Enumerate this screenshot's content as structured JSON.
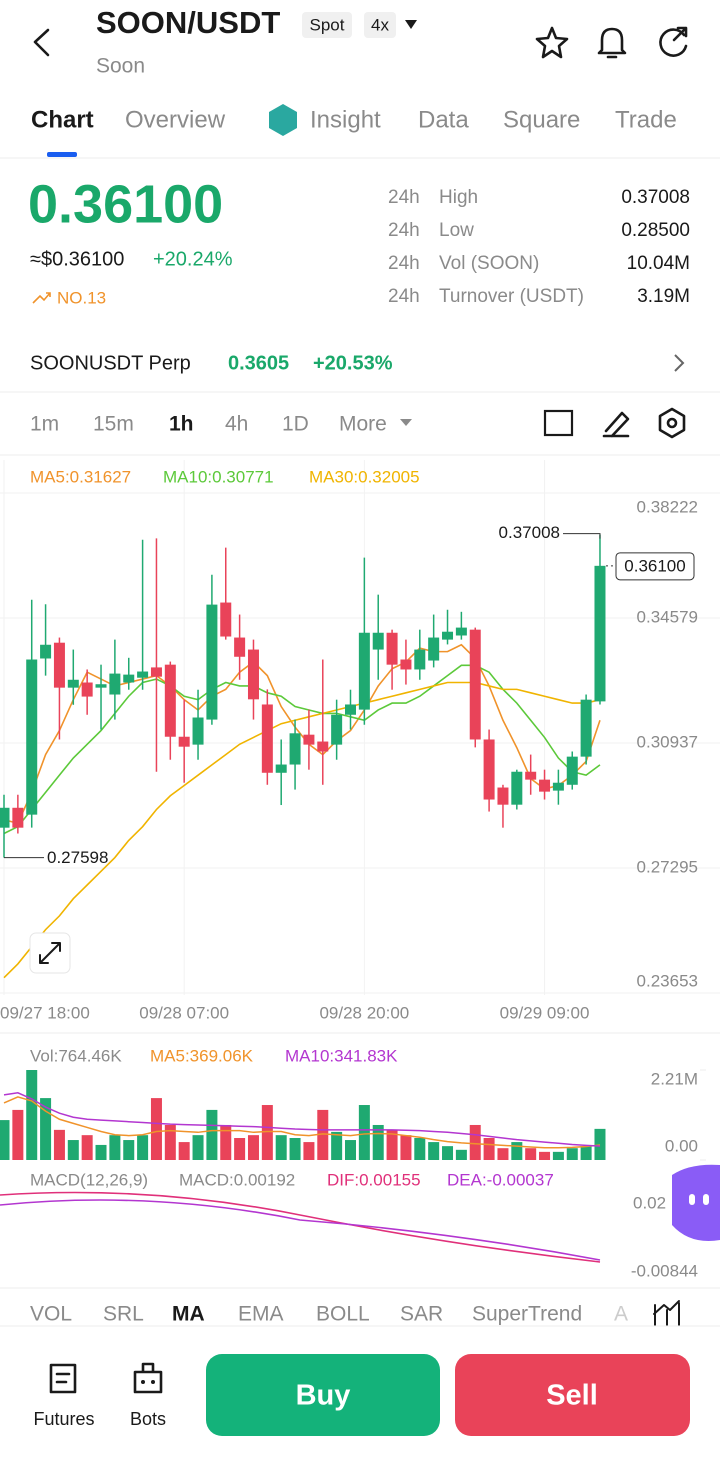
{
  "header": {
    "title": "SOON/USDT",
    "badges": [
      "Spot",
      "4x"
    ],
    "subtitle": "Soon"
  },
  "tabs": [
    "Chart",
    "Overview",
    "Insight",
    "Data",
    "Square",
    "Trade"
  ],
  "ticker": {
    "price": "0.36100",
    "usd": "≈$0.36100",
    "change": "+20.24%",
    "rank": "NO.13"
  },
  "stats": [
    [
      "24h",
      "High",
      "0.37008"
    ],
    [
      "24h",
      "Low",
      "0.28500"
    ],
    [
      "24h",
      "Vol (SOON)",
      "10.04M"
    ],
    [
      "24h",
      "Turnover (USDT)",
      "3.19M"
    ]
  ],
  "perp": {
    "name": "SOONUSDT Perp",
    "price": "0.3605",
    "change": "+20.53%"
  },
  "intervals": [
    "1m",
    "15m",
    "1h",
    "4h",
    "1D",
    "More"
  ],
  "chart_data": [
    {
      "type": "candlestick",
      "categories": [
        "09/27 18:00",
        null,
        null,
        null,
        null,
        null,
        null,
        null,
        null,
        null,
        null,
        null,
        null,
        "09/28 07:00",
        null,
        null,
        null,
        null,
        null,
        null,
        null,
        null,
        null,
        null,
        null,
        null,
        "09/28 20:00",
        null,
        null,
        null,
        null,
        null,
        null,
        null,
        null,
        null,
        null,
        null,
        null,
        "09/29 09:00",
        null,
        null,
        null,
        null
      ],
      "open": [
        0.2847,
        0.2905,
        0.2885,
        0.334,
        0.3386,
        0.3255,
        0.327,
        0.3255,
        0.3235,
        0.327,
        0.3284,
        0.3314,
        0.3322,
        0.3112,
        0.3089,
        0.3162,
        0.3503,
        0.3401,
        0.3366,
        0.3206,
        0.3007,
        0.3031,
        0.3118,
        0.3098,
        0.3089,
        0.3176,
        0.3191,
        0.3366,
        0.3415,
        0.3337,
        0.3308,
        0.3334,
        0.3395,
        0.3407,
        0.3424,
        0.3104,
        0.2964,
        0.2914,
        0.301,
        0.2987,
        0.2955,
        0.2972,
        0.3054,
        0.3215
      ],
      "high": [
        0.2943,
        0.2943,
        0.3511,
        0.3498,
        0.3401,
        0.3366,
        0.3308,
        0.3322,
        0.3395,
        0.3342,
        0.3686,
        0.369,
        0.3331,
        0.322,
        0.3249,
        0.3584,
        0.3663,
        0.3468,
        0.3395,
        0.325,
        0.3104,
        0.3162,
        0.3191,
        0.3337,
        0.322,
        0.3249,
        0.3634,
        0.3526,
        0.3424,
        0.3395,
        0.3424,
        0.3468,
        0.3482,
        0.3476,
        0.343,
        0.3133,
        0.2972,
        0.3016,
        0.306,
        0.3016,
        0.3016,
        0.3069,
        0.3235,
        0.37008
      ],
      "low": [
        0.27598,
        0.283,
        0.2847,
        0.329,
        0.3104,
        0.3205,
        0.3176,
        0.3133,
        0.3162,
        0.3249,
        0.3249,
        0.301,
        0.3045,
        0.2978,
        0.3045,
        0.3147,
        0.3395,
        0.3278,
        0.3162,
        0.2972,
        0.2913,
        0.2958,
        0.3016,
        0.2972,
        0.3045,
        0.3133,
        0.3147,
        0.3278,
        0.3249,
        0.3264,
        0.3278,
        0.3314,
        0.3381,
        0.3395,
        0.3081,
        0.2894,
        0.2847,
        0.29,
        0.2943,
        0.2929,
        0.2914,
        0.2958,
        0.3031,
        0.3206
      ],
      "close": [
        0.2905,
        0.2847,
        0.3337,
        0.338,
        0.3255,
        0.3278,
        0.3229,
        0.3265,
        0.3296,
        0.3293,
        0.3302,
        0.3287,
        0.3112,
        0.3083,
        0.3168,
        0.3497,
        0.3404,
        0.3345,
        0.3221,
        0.3007,
        0.3031,
        0.3122,
        0.3089,
        0.3069,
        0.3176,
        0.3206,
        0.3415,
        0.3415,
        0.3322,
        0.3308,
        0.3366,
        0.3401,
        0.3418,
        0.343,
        0.3104,
        0.2929,
        0.2914,
        0.301,
        0.2987,
        0.2952,
        0.2978,
        0.3054,
        0.322,
        0.361
      ],
      "series": [
        {
          "name": "MA5:0.31627",
          "color": "#f0932b",
          "values": [
            0.287,
            0.286,
            0.295,
            0.306,
            0.313,
            0.322,
            0.33,
            0.328,
            0.326,
            0.327,
            0.328,
            0.329,
            0.326,
            0.322,
            0.319,
            0.323,
            0.325,
            0.33,
            0.333,
            0.329,
            0.32,
            0.314,
            0.309,
            0.306,
            0.31,
            0.313,
            0.319,
            0.326,
            0.331,
            0.333,
            0.337,
            0.336,
            0.336,
            0.338,
            0.334,
            0.326,
            0.316,
            0.308,
            0.299,
            0.296,
            0.297,
            0.3,
            0.304,
            0.316
          ]
        },
        {
          "name": "MA10:0.30771",
          "color": "#5cc93a",
          "values": [
            0.283,
            0.285,
            0.29,
            0.295,
            0.3,
            0.305,
            0.309,
            0.313,
            0.318,
            0.323,
            0.327,
            0.328,
            0.326,
            0.323,
            0.322,
            0.325,
            0.327,
            0.326,
            0.326,
            0.324,
            0.323,
            0.32,
            0.319,
            0.318,
            0.318,
            0.317,
            0.316,
            0.319,
            0.321,
            0.321,
            0.323,
            0.326,
            0.329,
            0.332,
            0.332,
            0.33,
            0.325,
            0.321,
            0.316,
            0.311,
            0.305,
            0.301,
            0.3,
            0.303
          ]
        },
        {
          "name": "MA30:0.32005",
          "color": "#f0b400",
          "values": [
            0.241,
            0.245,
            0.25,
            0.255,
            0.259,
            0.264,
            0.268,
            0.272,
            0.276,
            0.281,
            0.285,
            0.29,
            0.294,
            0.297,
            0.3,
            0.303,
            0.306,
            0.309,
            0.311,
            0.313,
            0.315,
            0.316,
            0.317,
            0.318,
            0.319,
            0.32,
            0.321,
            0.322,
            0.323,
            0.324,
            0.325,
            0.326,
            0.327,
            0.327,
            0.327,
            0.326,
            0.325,
            0.325,
            0.324,
            0.323,
            0.322,
            0.321,
            0.321,
            0.322
          ]
        }
      ],
      "ylim": [
        0.23653,
        0.38222
      ],
      "yticks": [
        0.38222,
        0.34579,
        0.30937,
        0.27295,
        0.23653
      ],
      "markers": [
        0.37008,
        0.27598,
        {
          "value": 0.361,
          "label": "0.36100"
        }
      ],
      "up_color": "#1fa971",
      "down_color": "#e94359",
      "grid": true
    },
    {
      "type": "volume",
      "series": [
        {
          "name": "Vol:764.46K",
          "values": [
            980000,
            1230000,
            2210000,
            1520000,
            740000,
            490000,
            610000,
            370000,
            610000,
            490000,
            610000,
            1520000,
            860000,
            440000,
            610000,
            1230000,
            860000,
            540000,
            610000,
            1350000,
            610000,
            540000,
            440000,
            1230000,
            690000,
            490000,
            1350000,
            860000,
            740000,
            610000,
            540000,
            440000,
            340000,
            250000,
            860000,
            540000,
            290000,
            440000,
            290000,
            200000,
            200000,
            290000,
            340000,
            764460
          ]
        },
        {
          "name": "MA5:369.06K",
          "color": "#f0932b",
          "values": [
            1400000,
            1550000,
            1450000,
            1200000,
            1000000,
            900000,
            800000,
            700000,
            620000,
            600000,
            620000,
            700000,
            720000,
            700000,
            680000,
            720000,
            720000,
            720000,
            680000,
            700000,
            700000,
            620000,
            600000,
            640000,
            620000,
            600000,
            640000,
            650000,
            640000,
            600000,
            560000,
            500000,
            450000,
            420000,
            400000,
            380000,
            360000,
            340000,
            320000,
            300000,
            300000,
            310000,
            330000,
            369060
          ]
        },
        {
          "name": "MA10:341.83K",
          "color": "#b336d0",
          "values": [
            1600000,
            1650000,
            1500000,
            1300000,
            1150000,
            1050000,
            1000000,
            980000,
            960000,
            940000,
            920000,
            900000,
            880000,
            870000,
            860000,
            850000,
            840000,
            830000,
            820000,
            800000,
            780000,
            760000,
            750000,
            740000,
            740000,
            740000,
            740000,
            740000,
            740000,
            730000,
            720000,
            700000,
            680000,
            650000,
            620000,
            580000,
            540000,
            500000,
            470000,
            440000,
            410000,
            380000,
            360000,
            341830
          ]
        }
      ],
      "ylim": [
        0,
        2210000
      ],
      "yticks": [
        {
          "value": 0,
          "label": "0.00"
        },
        {
          "value": 2210000,
          "label": "2.21M"
        }
      ]
    }
  ],
  "macd": {
    "legend": [
      "MACD(12,26,9)",
      "MACD:0.00192",
      "DIF:0.00155",
      "DEA:-0.00037"
    ],
    "axis_labels": [
      "0.02",
      "-0.00844"
    ]
  },
  "indicators": [
    "VOL",
    "SRL",
    "MA",
    "EMA",
    "BOLL",
    "SAR",
    "SuperTrend",
    "A"
  ],
  "bottom": {
    "futures": "Futures",
    "bots": "Bots",
    "buy": "Buy",
    "sell": "Sell"
  }
}
